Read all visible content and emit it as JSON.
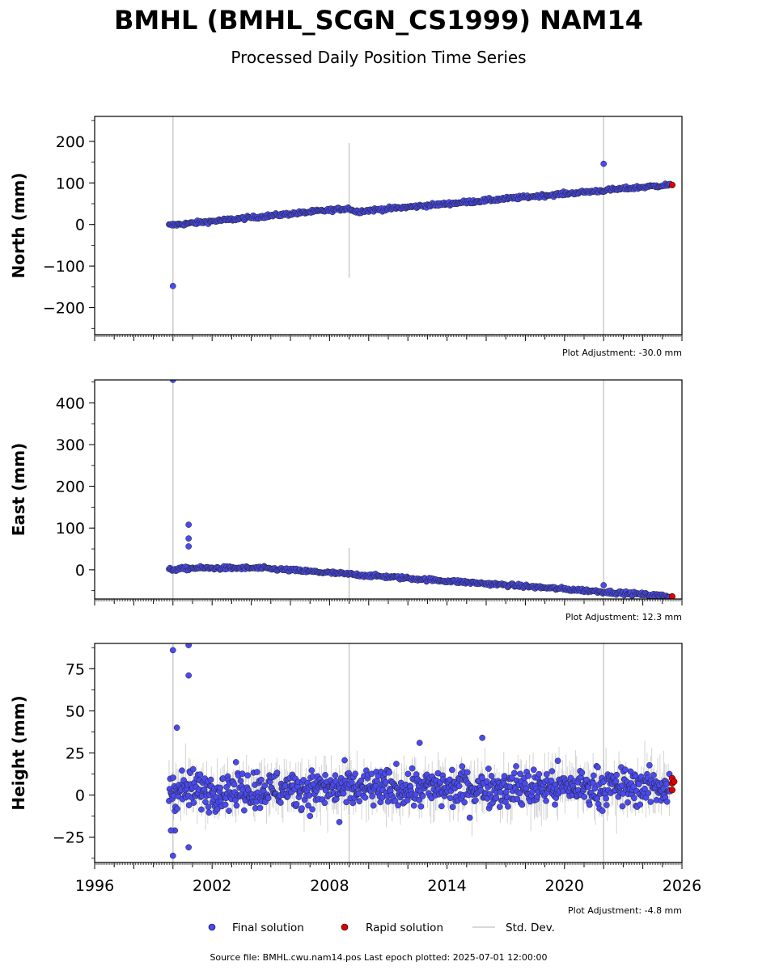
{
  "title": "BMHL (BMHL_SCGN_CS1999) NAM14",
  "subtitle": "Processed Daily Position Time Series",
  "legend": {
    "final": {
      "label": "Final solution",
      "color": "#4a4af0"
    },
    "rapid": {
      "label": "Rapid solution",
      "color": "#dd0000"
    },
    "std": {
      "label": "Std. Dev.",
      "color": "#cccccc"
    }
  },
  "source_text": "Source file: BMHL.cwu.nam14.pos  Last epoch plotted: 2025-07-01 12:00:00",
  "chart_data": [
    {
      "type": "scatter",
      "ylabel": "North (mm)",
      "adjustment": "Plot Adjustment: -30.0 mm",
      "xlim": [
        1996,
        2026
      ],
      "ylim": [
        -265,
        260
      ],
      "yticks": [
        200,
        100,
        0,
        -100,
        -200
      ],
      "yticklabels": [
        "200",
        "100",
        "0",
        "−100",
        "−200"
      ],
      "trend": [
        [
          1999.8,
          -2
        ],
        [
          2009.0,
          39
        ],
        [
          2009.3,
          31
        ],
        [
          2025.5,
          96
        ]
      ],
      "noise": 3,
      "outliers": [
        [
          2000.0,
          -148
        ],
        [
          2022.0,
          146
        ]
      ],
      "rapid": [
        [
          2025.5,
          95
        ]
      ],
      "std_lines": [
        [
          2000.0,
          -265,
          260
        ],
        [
          2009.0,
          -128,
          196
        ],
        [
          2022.0,
          -265,
          260
        ]
      ]
    },
    {
      "type": "scatter",
      "ylabel": "East (mm)",
      "adjustment": "Plot Adjustment: 12.3 mm",
      "xlim": [
        1996,
        2026
      ],
      "ylim": [
        -70,
        455
      ],
      "yticks": [
        400,
        300,
        200,
        100,
        0
      ],
      "yticklabels": [
        "400",
        "300",
        "200",
        "100",
        "0"
      ],
      "trend": [
        [
          1999.8,
          0
        ],
        [
          2001.0,
          4
        ],
        [
          2004.5,
          4
        ],
        [
          2025.5,
          -64
        ]
      ],
      "noise": 3,
      "outliers": [
        [
          2000.0,
          455
        ],
        [
          2000.8,
          108
        ],
        [
          2000.8,
          75
        ],
        [
          2000.8,
          56
        ],
        [
          2022.0,
          -37
        ]
      ],
      "rapid": [
        [
          2025.5,
          -64
        ]
      ],
      "std_lines": [
        [
          2000.0,
          -70,
          455
        ],
        [
          2009.0,
          -70,
          52
        ],
        [
          2022.0,
          -70,
          455
        ]
      ]
    },
    {
      "type": "scatter",
      "ylabel": "Height (mm)",
      "adjustment": "Plot Adjustment: -4.8 mm",
      "xlim": [
        1996,
        2026
      ],
      "ylim": [
        -40,
        90
      ],
      "yticks": [
        75,
        50,
        25,
        0,
        -25
      ],
      "yticklabels": [
        "75",
        "50",
        "25",
        "0",
        "−25"
      ],
      "xticks": [
        1996,
        2002,
        2008,
        2014,
        2020,
        2026
      ],
      "trend": [
        [
          1999.8,
          3
        ],
        [
          2025.5,
          5
        ]
      ],
      "noise": 8,
      "outliers": [
        [
          2000.0,
          86
        ],
        [
          2000.8,
          89
        ],
        [
          2000.8,
          71
        ],
        [
          2000.2,
          40
        ],
        [
          2000.0,
          -36
        ],
        [
          2000.8,
          -31
        ],
        [
          2000.1,
          -21
        ],
        [
          1999.9,
          -21
        ],
        [
          2015.8,
          34
        ],
        [
          2012.6,
          31
        ],
        [
          2008.5,
          -16
        ]
      ],
      "rapid": [
        [
          2025.5,
          10
        ],
        [
          2025.5,
          7
        ],
        [
          2025.5,
          3
        ],
        [
          2025.6,
          8
        ]
      ],
      "std_lines": [
        [
          2000.0,
          -40,
          90
        ],
        [
          2009.0,
          -40,
          90
        ],
        [
          2022.0,
          -40,
          90
        ]
      ]
    }
  ]
}
